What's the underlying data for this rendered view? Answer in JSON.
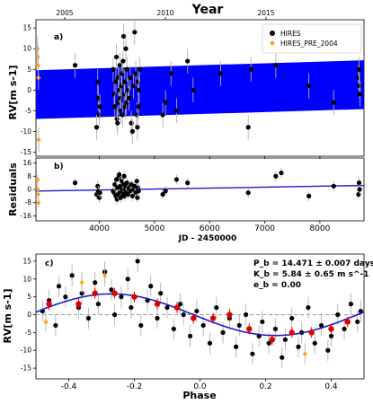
{
  "figure": {
    "top_axis_title": "Year",
    "top_axis_ticks": [
      2005,
      2010,
      2015
    ]
  },
  "colors": {
    "hires": "#000000",
    "hires_pre": "#f5a623",
    "model_band": "#0000ff",
    "model_line": "#1a1acc",
    "errorbar": "#b0b0b0",
    "binned": "#e00000",
    "zero_line": "#999999"
  },
  "chart_data": [
    {
      "panel": "a)",
      "type": "scatter",
      "ylabel": "RV[m s-1]",
      "xlim": [
        2850,
        8800
      ],
      "ylim": [
        -16,
        17
      ],
      "yticks": [
        -15,
        -10,
        -5,
        0,
        5,
        10,
        15
      ],
      "xticks": [
        4000,
        5000,
        6000,
        7000,
        8000
      ],
      "legend": {
        "position": "top-right",
        "entries": [
          "HIRES",
          "HIRES_PRE_2004"
        ]
      },
      "model_band": {
        "x": [
          2850,
          8800
        ],
        "lower": [
          -7.0,
          -4.6
        ],
        "upper": [
          4.8,
          7.2
        ]
      },
      "series": [
        {
          "name": "HIRES",
          "points": [
            [
              3560,
              6,
              3
            ],
            [
              3950,
              -9,
              3
            ],
            [
              3970,
              2,
              3
            ],
            [
              3980,
              -2,
              3
            ],
            [
              4000,
              -6,
              3
            ],
            [
              4010,
              -4,
              3
            ],
            [
              4250,
              5,
              3
            ],
            [
              4270,
              -1,
              3
            ],
            [
              4280,
              -4,
              3
            ],
            [
              4300,
              2,
              3
            ],
            [
              4310,
              8,
              3
            ],
            [
              4320,
              -7,
              3
            ],
            [
              4330,
              -8,
              3
            ],
            [
              4340,
              3,
              3
            ],
            [
              4350,
              -3,
              3
            ],
            [
              4360,
              0,
              3
            ],
            [
              4370,
              6,
              3
            ],
            [
              4380,
              -2,
              3
            ],
            [
              4390,
              -5,
              3
            ],
            [
              4400,
              1,
              3
            ],
            [
              4410,
              4,
              3
            ],
            [
              4420,
              -6,
              3
            ],
            [
              4430,
              7,
              3
            ],
            [
              4440,
              13,
              3
            ],
            [
              4450,
              -1,
              3
            ],
            [
              4460,
              2,
              3
            ],
            [
              4470,
              -4,
              3
            ],
            [
              4480,
              10,
              3
            ],
            [
              4490,
              -3,
              3
            ],
            [
              4500,
              5,
              3
            ],
            [
              4520,
              0,
              3
            ],
            [
              4540,
              -2,
              3
            ],
            [
              4560,
              3,
              3
            ],
            [
              4580,
              -8,
              3
            ],
            [
              4600,
              -10,
              3
            ],
            [
              4620,
              1,
              3
            ],
            [
              4640,
              14,
              3
            ],
            [
              4660,
              4,
              3
            ],
            [
              4680,
              -6,
              3
            ],
            [
              4690,
              -9,
              3
            ],
            [
              4700,
              2,
              3
            ],
            [
              4710,
              -4,
              3
            ],
            [
              4720,
              0,
              3
            ],
            [
              4730,
              5,
              3
            ],
            [
              5150,
              -6,
              3
            ],
            [
              5200,
              -3,
              3
            ],
            [
              5300,
              4,
              3
            ],
            [
              5400,
              -5,
              3
            ],
            [
              5600,
              7,
              3
            ],
            [
              5700,
              0,
              3
            ],
            [
              6200,
              4,
              3
            ],
            [
              6700,
              -9,
              3
            ],
            [
              6750,
              5,
              3
            ],
            [
              7200,
              6,
              3
            ],
            [
              7800,
              1,
              3
            ],
            [
              8250,
              -3,
              3
            ],
            [
              8700,
              3,
              3
            ],
            [
              8710,
              5,
              3
            ],
            [
              8720,
              1,
              3
            ],
            [
              8730,
              -1,
              3
            ]
          ]
        },
        {
          "name": "HIRES_PRE_2004",
          "points": [
            [
              2880,
              10,
              3
            ],
            [
              2885,
              8,
              3
            ],
            [
              2890,
              6,
              3
            ],
            [
              2895,
              3,
              3
            ],
            [
              2900,
              -12,
              3
            ]
          ]
        }
      ]
    },
    {
      "panel": "b)",
      "type": "scatter",
      "ylabel": "Residuals",
      "xlabel": "JD - 2450000",
      "xlim": [
        2850,
        8800
      ],
      "ylim": [
        -19,
        19
      ],
      "yticks": [
        -16,
        -8,
        0,
        8,
        16
      ],
      "xticks": [
        4000,
        5000,
        6000,
        7000,
        8000
      ],
      "trend_line": {
        "x": [
          2850,
          8800
        ],
        "y": [
          -1.0,
          2.4
        ]
      },
      "series": [
        {
          "name": "HIRES",
          "points": [
            [
              3560,
              4,
              3
            ],
            [
              3950,
              -3,
              3
            ],
            [
              3970,
              2,
              3
            ],
            [
              3980,
              -1,
              3
            ],
            [
              4000,
              -5,
              3
            ],
            [
              4010,
              -2,
              3
            ],
            [
              4250,
              -1,
              3
            ],
            [
              4270,
              -2,
              3
            ],
            [
              4280,
              3,
              3
            ],
            [
              4300,
              -4,
              3
            ],
            [
              4310,
              6,
              3
            ],
            [
              4320,
              -6,
              3
            ],
            [
              4330,
              1,
              3
            ],
            [
              4340,
              -3,
              3
            ],
            [
              4350,
              7,
              3
            ],
            [
              4360,
              9,
              3
            ],
            [
              4370,
              -2,
              3
            ],
            [
              4380,
              2,
              3
            ],
            [
              4390,
              -5,
              3
            ],
            [
              4400,
              1,
              3
            ],
            [
              4410,
              5,
              3
            ],
            [
              4420,
              -1,
              3
            ],
            [
              4430,
              -3,
              3
            ],
            [
              4440,
              3,
              3
            ],
            [
              4450,
              8,
              3
            ],
            [
              4460,
              -4,
              3
            ],
            [
              4470,
              0,
              3
            ],
            [
              4480,
              2,
              3
            ],
            [
              4490,
              -2,
              3
            ],
            [
              4500,
              4,
              3
            ],
            [
              4520,
              -3,
              3
            ],
            [
              4540,
              1,
              3
            ],
            [
              4560,
              -1,
              3
            ],
            [
              4580,
              3,
              3
            ],
            [
              4600,
              -4,
              3
            ],
            [
              4620,
              0,
              3
            ],
            [
              4640,
              2,
              3
            ],
            [
              4660,
              -2,
              3
            ],
            [
              4680,
              5,
              3
            ],
            [
              4690,
              -5,
              3
            ],
            [
              4700,
              1,
              3
            ],
            [
              4710,
              -1,
              3
            ],
            [
              5150,
              -3,
              3
            ],
            [
              5200,
              -1,
              3
            ],
            [
              5400,
              6,
              3
            ],
            [
              5600,
              4,
              3
            ],
            [
              6700,
              -2,
              3
            ],
            [
              7200,
              8,
              3
            ],
            [
              7300,
              10,
              3
            ],
            [
              7800,
              -4,
              3
            ],
            [
              8250,
              2,
              3
            ],
            [
              8700,
              -3,
              3
            ],
            [
              8710,
              4,
              3
            ],
            [
              8720,
              0,
              3
            ]
          ]
        },
        {
          "name": "HIRES_PRE_2004",
          "points": [
            [
              2880,
              6,
              3
            ],
            [
              2885,
              0,
              3
            ],
            [
              2890,
              -3,
              3
            ],
            [
              2895,
              -8,
              3
            ]
          ]
        }
      ]
    },
    {
      "panel": "c)",
      "type": "scatter",
      "ylabel": "RV[m s-1]",
      "xlabel": "Phase",
      "xlim": [
        -0.5,
        0.5
      ],
      "ylim": [
        -18,
        17
      ],
      "yticks": [
        -15,
        -10,
        -5,
        0,
        5,
        10,
        15
      ],
      "xticks": [
        -0.4,
        -0.2,
        0.0,
        0.2,
        0.4
      ],
      "annotations": [
        "P_b = 14.471 ± 0.007 days",
        "K_b = 5.84 ± 0.65 m s^-1",
        "e_b = 0.00"
      ],
      "model": {
        "type": "sine",
        "amplitude": 5.84,
        "period_phase": 1.0,
        "peak_phase": -0.27
      },
      "series": [
        {
          "name": "HIRES",
          "points": [
            [
              -0.48,
              1,
              3
            ],
            [
              -0.46,
              4,
              3
            ],
            [
              -0.44,
              -3,
              3
            ],
            [
              -0.43,
              8,
              3
            ],
            [
              -0.41,
              5,
              3
            ],
            [
              -0.39,
              11,
              3
            ],
            [
              -0.37,
              2,
              3
            ],
            [
              -0.36,
              6,
              3
            ],
            [
              -0.34,
              -1,
              3
            ],
            [
              -0.32,
              9,
              3
            ],
            [
              -0.31,
              3,
              3
            ],
            [
              -0.29,
              12,
              3
            ],
            [
              -0.27,
              7,
              3
            ],
            [
              -0.26,
              0,
              3
            ],
            [
              -0.24,
              5,
              3
            ],
            [
              -0.22,
              10,
              3
            ],
            [
              -0.21,
              2,
              3
            ],
            [
              -0.19,
              15,
              3
            ],
            [
              -0.18,
              -3,
              3
            ],
            [
              -0.16,
              4,
              3
            ],
            [
              -0.15,
              8,
              3
            ],
            [
              -0.13,
              -1,
              3
            ],
            [
              -0.12,
              6,
              3
            ],
            [
              -0.1,
              2,
              3
            ],
            [
              -0.08,
              -4,
              3
            ],
            [
              -0.06,
              3,
              3
            ],
            [
              -0.05,
              0,
              3
            ],
            [
              -0.03,
              -6,
              3
            ],
            [
              -0.01,
              1,
              3
            ],
            [
              0.01,
              -3,
              3
            ],
            [
              0.03,
              -8,
              3
            ],
            [
              0.05,
              2,
              3
            ],
            [
              0.07,
              -5,
              3
            ],
            [
              0.09,
              -1,
              3
            ],
            [
              0.11,
              -9,
              3
            ],
            [
              0.12,
              -3,
              3
            ],
            [
              0.14,
              0,
              3
            ],
            [
              0.16,
              -11,
              3
            ],
            [
              0.18,
              -6,
              3
            ],
            [
              0.19,
              -2,
              3
            ],
            [
              0.21,
              -8,
              3
            ],
            [
              0.23,
              -4,
              3
            ],
            [
              0.25,
              -12,
              3
            ],
            [
              0.26,
              -7,
              3
            ],
            [
              0.28,
              -1,
              3
            ],
            [
              0.3,
              -9,
              3
            ],
            [
              0.31,
              -5,
              3
            ],
            [
              0.33,
              2,
              3
            ],
            [
              0.35,
              -8,
              3
            ],
            [
              0.37,
              -3,
              3
            ],
            [
              0.39,
              -10,
              3
            ],
            [
              0.4,
              -6,
              3
            ],
            [
              0.42,
              0,
              3
            ],
            [
              0.44,
              -4,
              3
            ],
            [
              0.46,
              3,
              3
            ],
            [
              0.48,
              -2,
              3
            ],
            [
              0.49,
              1,
              3
            ]
          ]
        },
        {
          "name": "HIRES_PRE_2004",
          "points": [
            [
              -0.36,
              9,
              3
            ],
            [
              -0.29,
              11,
              3
            ],
            [
              0.32,
              -11,
              3
            ],
            [
              -0.47,
              -2,
              3
            ]
          ]
        },
        {
          "name": "binned",
          "points": [
            [
              -0.46,
              3,
              1.5
            ],
            [
              -0.37,
              3,
              1.5
            ],
            [
              -0.32,
              6,
              1.5
            ],
            [
              -0.26,
              6,
              1.5
            ],
            [
              -0.2,
              5,
              1.5
            ],
            [
              -0.13,
              3,
              1.5
            ],
            [
              -0.07,
              2,
              1.5
            ],
            [
              -0.02,
              -1,
              1.5
            ],
            [
              0.04,
              -1,
              1.5
            ],
            [
              0.09,
              0,
              1.5
            ],
            [
              0.15,
              -4,
              1.5
            ],
            [
              0.22,
              -7,
              1.5
            ],
            [
              0.28,
              -5,
              1.5
            ],
            [
              0.34,
              -5,
              1.5
            ],
            [
              0.4,
              -4,
              1.5
            ],
            [
              0.45,
              -2,
              1.5
            ]
          ]
        }
      ]
    }
  ]
}
